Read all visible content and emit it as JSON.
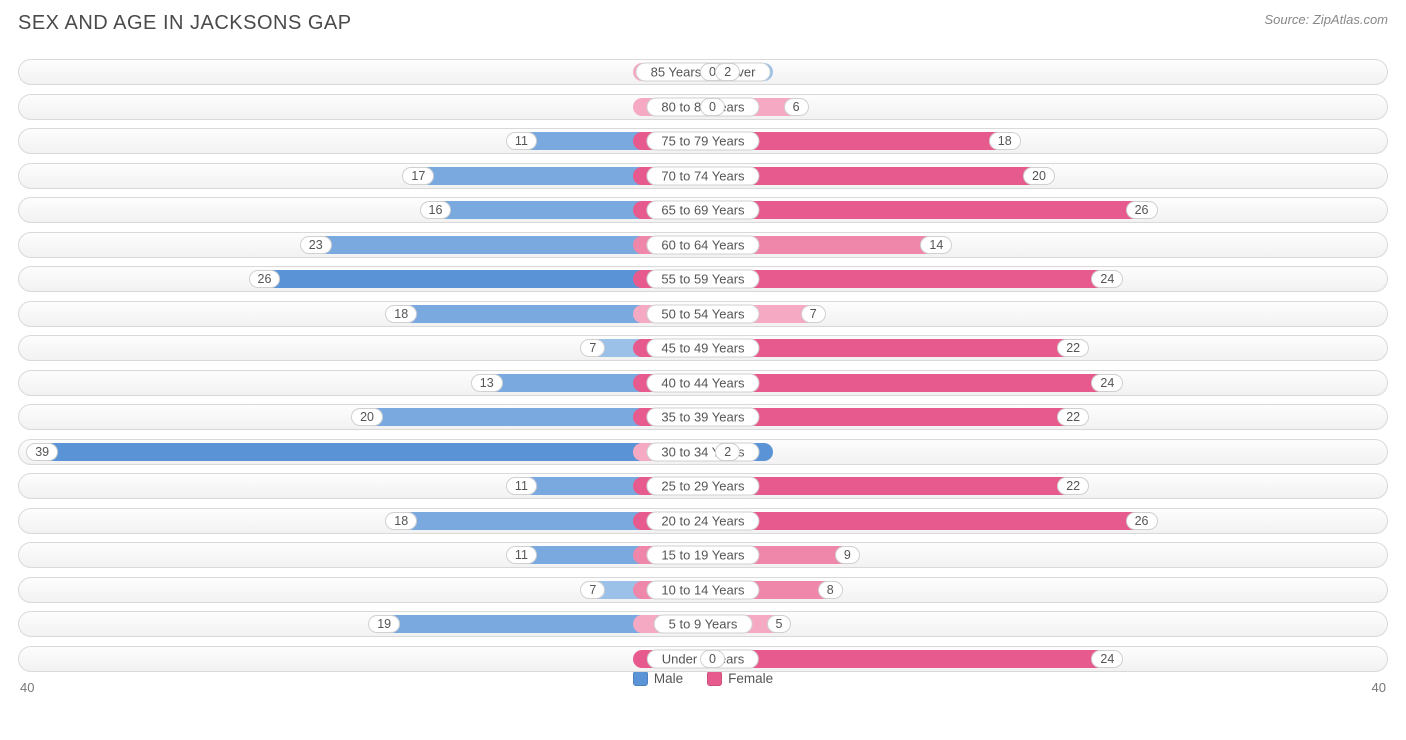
{
  "title": "SEX AND AGE IN JACKSONS GAP",
  "source": "Source: ZipAtlas.com",
  "axis_max": 40,
  "axis_left_label": "40",
  "axis_right_label": "40",
  "male_label_offset_pct": 4.5,
  "female_label_offset_pct": 4.5,
  "style": {
    "track_border": "#d9d9d9",
    "track_bg_top": "#fdfdfd",
    "track_bg_bottom": "#f2f2f2",
    "label_border": "#d0d0d0",
    "text_color": "#555555",
    "title_color": "#4a4a4a",
    "fontsize_title": 20,
    "fontsize_label": 13
  },
  "colors": {
    "male_strong": "#5a94d6",
    "male_med": "#79a9df",
    "male_light": "#9bc1e9",
    "female_strong": "#e75a8d",
    "female_med": "#ef87ab",
    "female_light": "#f6a9c2"
  },
  "legend": {
    "male": {
      "label": "Male",
      "color": "#5a94d6"
    },
    "female": {
      "label": "Female",
      "color": "#e75a8d"
    }
  },
  "rows": [
    {
      "label": "85 Years and over",
      "male": 0,
      "female": 2,
      "male_shade": "light",
      "female_shade": "light"
    },
    {
      "label": "80 to 84 Years",
      "male": 0,
      "female": 6,
      "male_shade": "light",
      "female_shade": "light"
    },
    {
      "label": "75 to 79 Years",
      "male": 11,
      "female": 18,
      "male_shade": "med",
      "female_shade": "strong"
    },
    {
      "label": "70 to 74 Years",
      "male": 17,
      "female": 20,
      "male_shade": "med",
      "female_shade": "strong"
    },
    {
      "label": "65 to 69 Years",
      "male": 16,
      "female": 26,
      "male_shade": "med",
      "female_shade": "strong"
    },
    {
      "label": "60 to 64 Years",
      "male": 23,
      "female": 14,
      "male_shade": "med",
      "female_shade": "med"
    },
    {
      "label": "55 to 59 Years",
      "male": 26,
      "female": 24,
      "male_shade": "strong",
      "female_shade": "strong"
    },
    {
      "label": "50 to 54 Years",
      "male": 18,
      "female": 7,
      "male_shade": "med",
      "female_shade": "light"
    },
    {
      "label": "45 to 49 Years",
      "male": 7,
      "female": 22,
      "male_shade": "light",
      "female_shade": "strong"
    },
    {
      "label": "40 to 44 Years",
      "male": 13,
      "female": 24,
      "male_shade": "med",
      "female_shade": "strong"
    },
    {
      "label": "35 to 39 Years",
      "male": 20,
      "female": 22,
      "male_shade": "med",
      "female_shade": "strong"
    },
    {
      "label": "30 to 34 Years",
      "male": 39,
      "female": 2,
      "male_shade": "strong",
      "female_shade": "light"
    },
    {
      "label": "25 to 29 Years",
      "male": 11,
      "female": 22,
      "male_shade": "med",
      "female_shade": "strong"
    },
    {
      "label": "20 to 24 Years",
      "male": 18,
      "female": 26,
      "male_shade": "med",
      "female_shade": "strong"
    },
    {
      "label": "15 to 19 Years",
      "male": 11,
      "female": 9,
      "male_shade": "med",
      "female_shade": "med"
    },
    {
      "label": "10 to 14 Years",
      "male": 7,
      "female": 8,
      "male_shade": "light",
      "female_shade": "med"
    },
    {
      "label": "5 to 9 Years",
      "male": 19,
      "female": 5,
      "male_shade": "med",
      "female_shade": "light"
    },
    {
      "label": "Under 5 Years",
      "male": 0,
      "female": 24,
      "male_shade": "light",
      "female_shade": "strong"
    }
  ]
}
